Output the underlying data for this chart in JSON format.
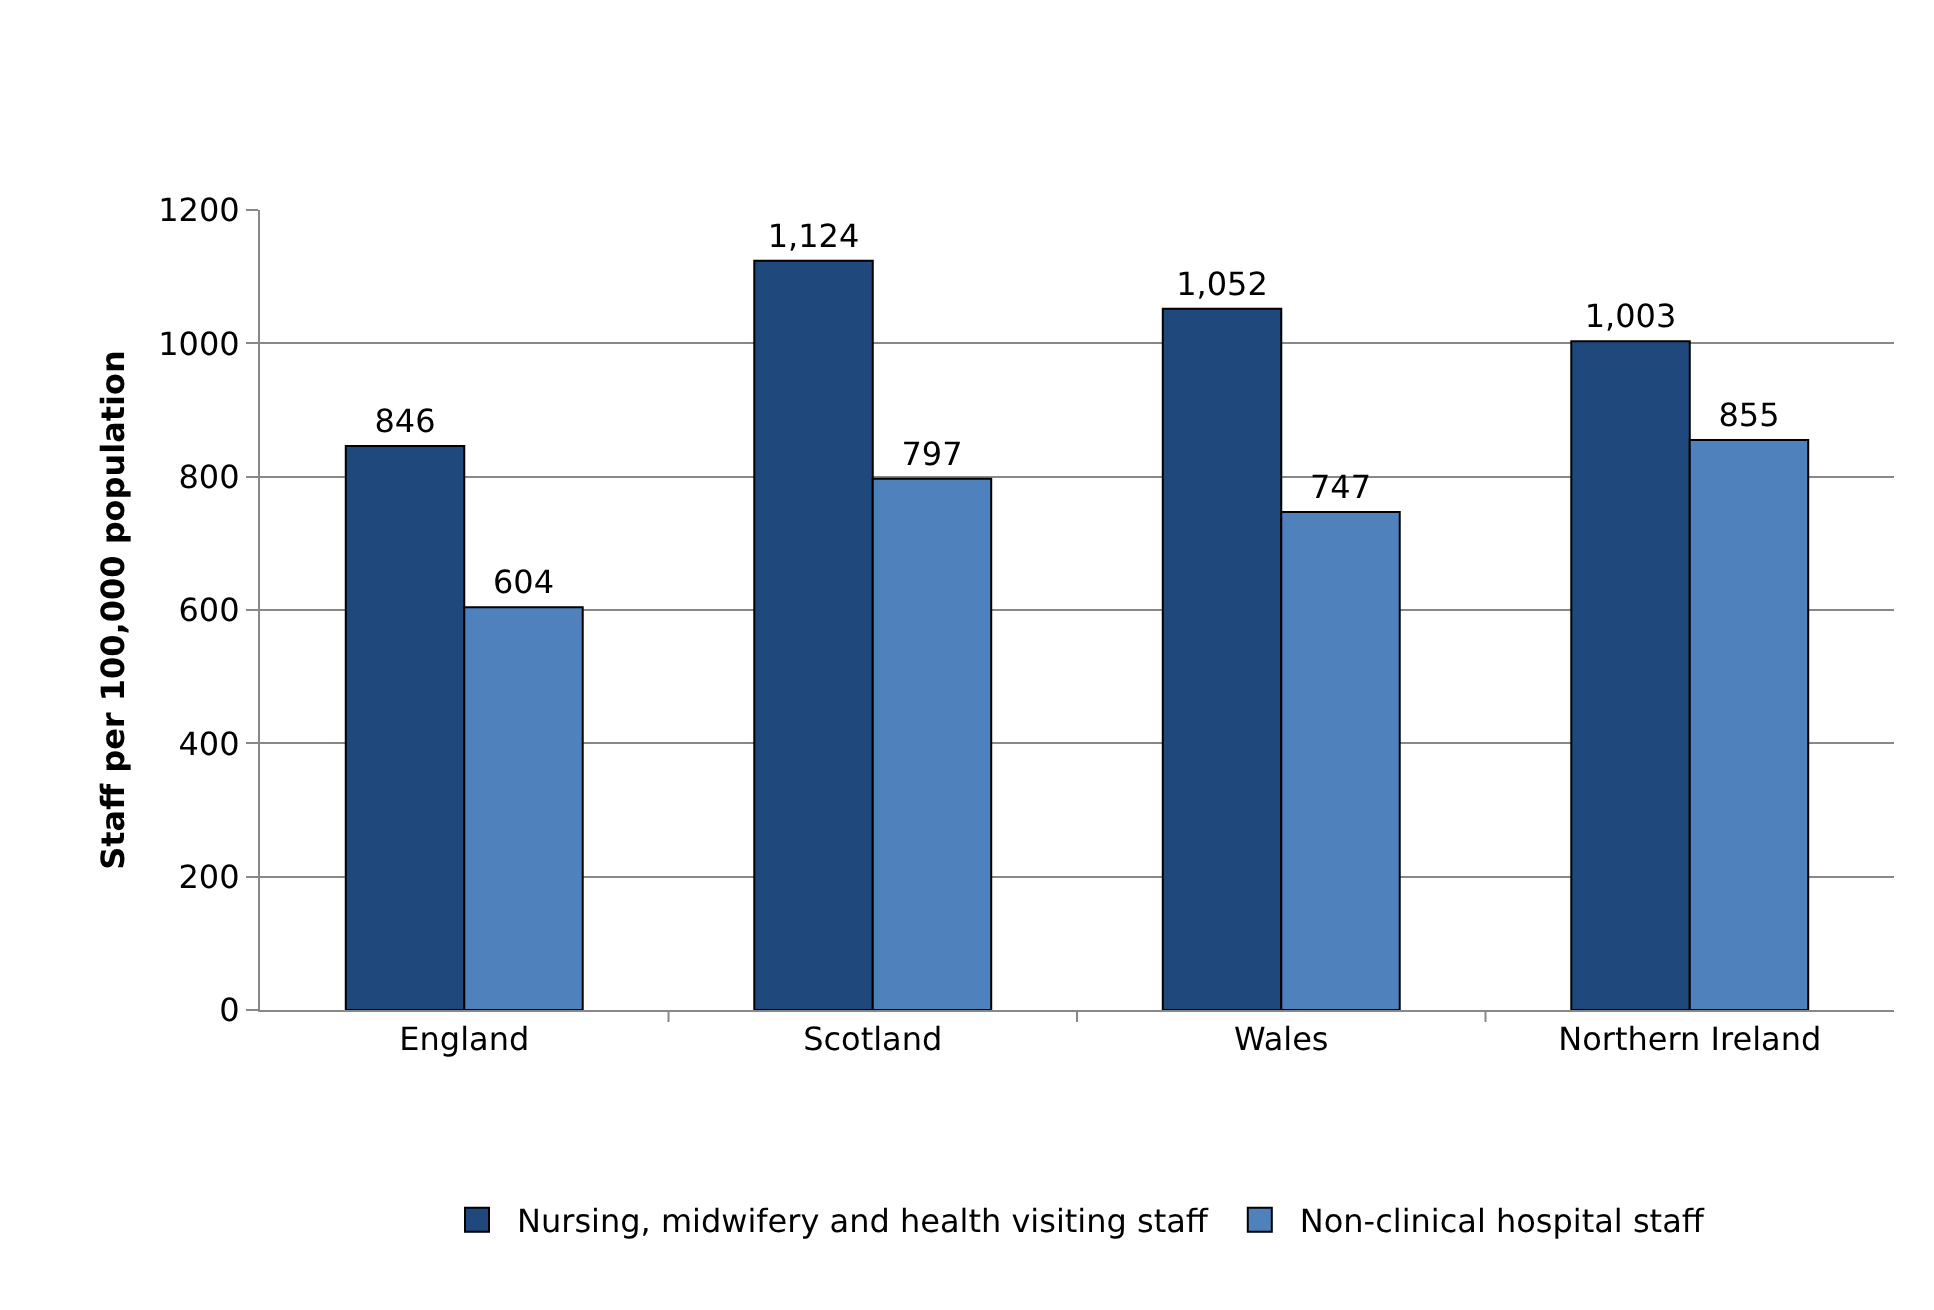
{
  "chart_data": {
    "type": "bar",
    "ylabel": "Staff per 100,000 population",
    "categories": [
      "England",
      "Scotland",
      "Wales",
      "Northern Ireland"
    ],
    "series": [
      {
        "name": "Nursing, midwifery and health visiting staff",
        "color": "#1f497d",
        "values": [
          846,
          1124,
          1052,
          1003
        ],
        "value_labels": [
          "846",
          "1,124",
          "1,052",
          "1,003"
        ]
      },
      {
        "name": "Non-clinical hospital staff",
        "color": "#4f81bd",
        "values": [
          604,
          797,
          747,
          855
        ],
        "value_labels": [
          "604",
          "797",
          "747",
          "855"
        ]
      }
    ],
    "ylim": [
      0,
      1200
    ],
    "yticks": [
      0,
      200,
      400,
      600,
      800,
      1000,
      1200
    ],
    "grid": "y",
    "legend": "bottom"
  }
}
